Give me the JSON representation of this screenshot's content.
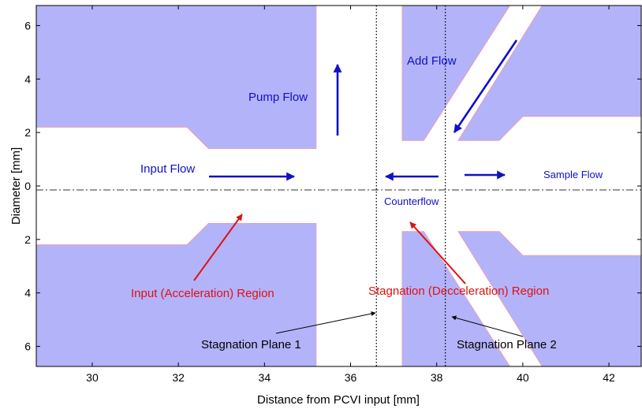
{
  "axes": {
    "xlabel": "Distance from PCVI input [mm]",
    "ylabel": "Diameter [mm]",
    "xlim": [
      28.7,
      42.75
    ],
    "ylim": [
      -6.75,
      6.75
    ],
    "x_ticks": [
      30,
      32,
      34,
      36,
      38,
      40,
      42
    ],
    "y_ticks": [
      {
        "value": 6,
        "label": "6"
      },
      {
        "value": 4,
        "label": "4"
      },
      {
        "value": 2,
        "label": "2"
      },
      {
        "value": 0,
        "label": "0"
      },
      {
        "value": -2,
        "label": "2"
      },
      {
        "value": -4,
        "label": "4"
      },
      {
        "value": -6,
        "label": "6"
      }
    ]
  },
  "colors": {
    "wall_fill": "#b3b3fa",
    "wall_edge": "#e8a0b8",
    "flow_arrow": "#1010c8",
    "region_arrow": "#e01010",
    "plane_arrow": "#000000"
  },
  "stagnation_planes": [
    {
      "name": "stagnation-plane-1-line",
      "x": 36.6
    },
    {
      "name": "stagnation-plane-2-line",
      "x": 38.2
    }
  ],
  "labels": {
    "add_flow": "Add Flow",
    "pump_flow": "Pump Flow",
    "input_flow": "Input Flow",
    "sample_flow": "Sample Flow",
    "counterflow": "Counterflow",
    "input_region": "Input (Acceleration) Region",
    "stagnation_region": "Stagnation (Decceleration) Region",
    "stagnation_plane_1": "Stagnation Plane 1",
    "stagnation_plane_2": "Stagnation Plane 2"
  },
  "walls": [
    {
      "name": "wall-upper-left",
      "points": [
        [
          28.7,
          6.75
        ],
        [
          35.2,
          6.75
        ],
        [
          35.2,
          1.4
        ],
        [
          32.7,
          1.4
        ],
        [
          32.2,
          2.2
        ],
        [
          28.7,
          2.2
        ]
      ]
    },
    {
      "name": "wall-lower-left",
      "points": [
        [
          28.7,
          -6.75
        ],
        [
          35.2,
          -6.75
        ],
        [
          35.2,
          -1.4
        ],
        [
          32.7,
          -1.4
        ],
        [
          32.2,
          -2.2
        ],
        [
          28.7,
          -2.2
        ]
      ]
    },
    {
      "name": "wall-upper-middle",
      "points": [
        [
          37.2,
          6.75
        ],
        [
          39.7,
          6.75
        ],
        [
          37.7,
          1.7
        ],
        [
          37.2,
          1.7
        ]
      ]
    },
    {
      "name": "wall-upper-right",
      "points": [
        [
          40.45,
          6.75
        ],
        [
          42.75,
          6.75
        ],
        [
          42.75,
          2.6
        ],
        [
          40.0,
          2.6
        ],
        [
          39.45,
          1.7
        ],
        [
          38.5,
          1.7
        ]
      ]
    },
    {
      "name": "wall-lower-middle",
      "points": [
        [
          37.2,
          -6.75
        ],
        [
          39.7,
          -6.75
        ],
        [
          37.7,
          -1.7
        ],
        [
          37.2,
          -1.7
        ]
      ]
    },
    {
      "name": "wall-lower-right",
      "points": [
        [
          40.45,
          -6.75
        ],
        [
          42.75,
          -6.75
        ],
        [
          42.75,
          -2.6
        ],
        [
          40.0,
          -2.6
        ],
        [
          39.45,
          -1.7
        ],
        [
          38.5,
          -1.7
        ]
      ]
    }
  ]
}
